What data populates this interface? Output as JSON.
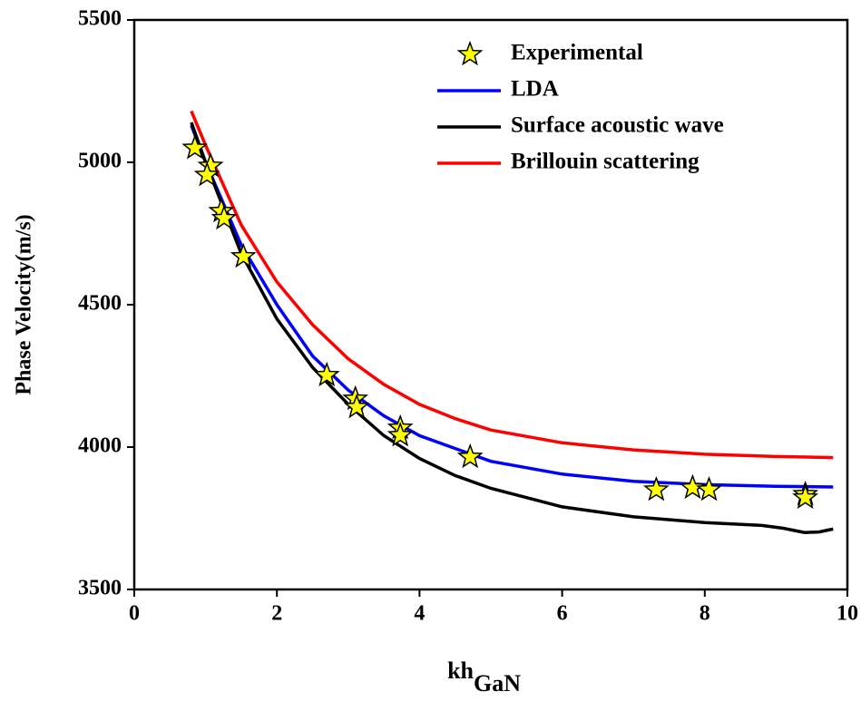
{
  "chart_data": {
    "type": "line",
    "ylabel": "Phase Velocity(m/s)",
    "xlabel": "kh",
    "xlabel_sub": "GaN",
    "xlim": [
      0,
      10
    ],
    "xticks": [
      0,
      2,
      4,
      6,
      8,
      10
    ],
    "ylim": [
      3500,
      5500
    ],
    "yticks": [
      3500,
      4000,
      4500,
      5000,
      5500
    ],
    "legend": "upper right",
    "series": [
      {
        "name": "Experimental",
        "kind": "scatter",
        "color": "#ffff00",
        "x": [
          0.85,
          1.07,
          1.02,
          1.22,
          1.26,
          1.53,
          2.7,
          3.1,
          3.12,
          3.73,
          3.73,
          4.71,
          7.32,
          7.83,
          8.06,
          9.41,
          9.41
        ],
        "values": [
          5050,
          4987,
          4955,
          4828,
          4803,
          4669,
          4252,
          4169,
          4140,
          4067,
          4041,
          3965,
          3850,
          3857,
          3850,
          3834,
          3822
        ]
      },
      {
        "name": "LDA",
        "kind": "line",
        "color": "#0000ff",
        "x": [
          0.8,
          1,
          1.5,
          2,
          2.5,
          3,
          3.5,
          4,
          5,
          6,
          7,
          8,
          9,
          9.8
        ],
        "values": [
          5130,
          5000,
          4710,
          4500,
          4320,
          4200,
          4110,
          4040,
          3950,
          3905,
          3880,
          3868,
          3862,
          3860
        ]
      },
      {
        "name": "Surface acoustic wave",
        "kind": "line",
        "color": "#000000",
        "x": [
          0.8,
          1,
          1.5,
          2,
          2.5,
          3,
          3.5,
          4,
          4.5,
          5,
          6,
          7,
          8,
          8.8,
          9.1,
          9.4,
          9.6,
          9.8
        ],
        "values": [
          5140,
          5000,
          4680,
          4450,
          4280,
          4150,
          4040,
          3960,
          3900,
          3855,
          3790,
          3755,
          3735,
          3725,
          3715,
          3700,
          3702,
          3712
        ]
      },
      {
        "name": "Brillouin scattering",
        "kind": "line",
        "color": "#ff0000",
        "x": [
          0.8,
          1,
          1.5,
          2,
          2.5,
          3,
          3.5,
          4,
          4.5,
          5,
          6,
          7,
          8,
          9,
          9.8
        ],
        "values": [
          5180,
          5060,
          4780,
          4580,
          4430,
          4310,
          4220,
          4150,
          4100,
          4060,
          4015,
          3990,
          3975,
          3967,
          3963
        ]
      }
    ]
  }
}
